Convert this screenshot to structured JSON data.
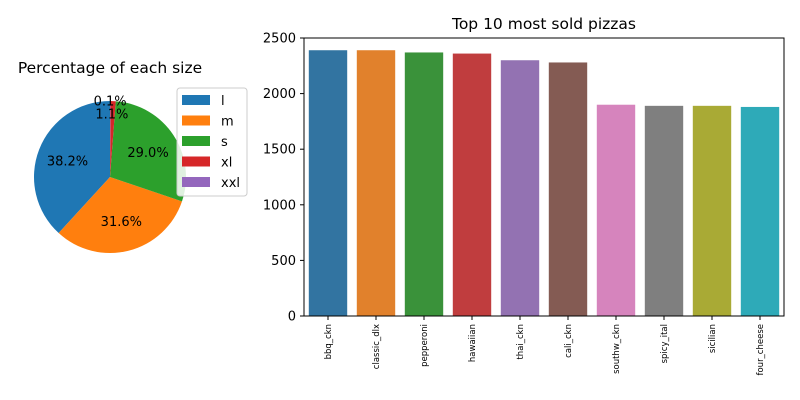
{
  "chart_data": [
    {
      "type": "pie",
      "title": "Percentage of each size",
      "labels": [
        "l",
        "m",
        "s",
        "xl",
        "xxl"
      ],
      "values": [
        38.2,
        31.6,
        29.0,
        1.1,
        0.1
      ],
      "value_labels": [
        "38.2%",
        "31.6%",
        "29.0%",
        "1.1%",
        "0.1%"
      ],
      "colors": [
        "#1f77b4",
        "#ff7f0e",
        "#2ca02c",
        "#d62728",
        "#9467bd"
      ],
      "legend": {
        "placement": "right",
        "entries": [
          "l",
          "m",
          "s",
          "xl",
          "xxl"
        ]
      }
    },
    {
      "type": "bar",
      "title": "Top 10 most sold pizzas",
      "categories": [
        "bbq_ckn",
        "classic_dlx",
        "pepperoni",
        "hawaiian",
        "thai_ckn",
        "cali_ckn",
        "southw_ckn",
        "spicy_ital",
        "sicilian",
        "four_cheese"
      ],
      "values": [
        2390,
        2390,
        2370,
        2360,
        2300,
        2280,
        1900,
        1890,
        1890,
        1880
      ],
      "colors": [
        "#3274a1",
        "#e1812c",
        "#3a923a",
        "#c03d3e",
        "#9372b2",
        "#845b53",
        "#d684bd",
        "#7f7f7f",
        "#a9aa35",
        "#2eaab8"
      ],
      "xlabel": "",
      "ylabel": "",
      "ylim": [
        0,
        2500
      ],
      "yticks": [
        0,
        500,
        1000,
        1500,
        2000,
        2500
      ],
      "grid": false
    }
  ]
}
